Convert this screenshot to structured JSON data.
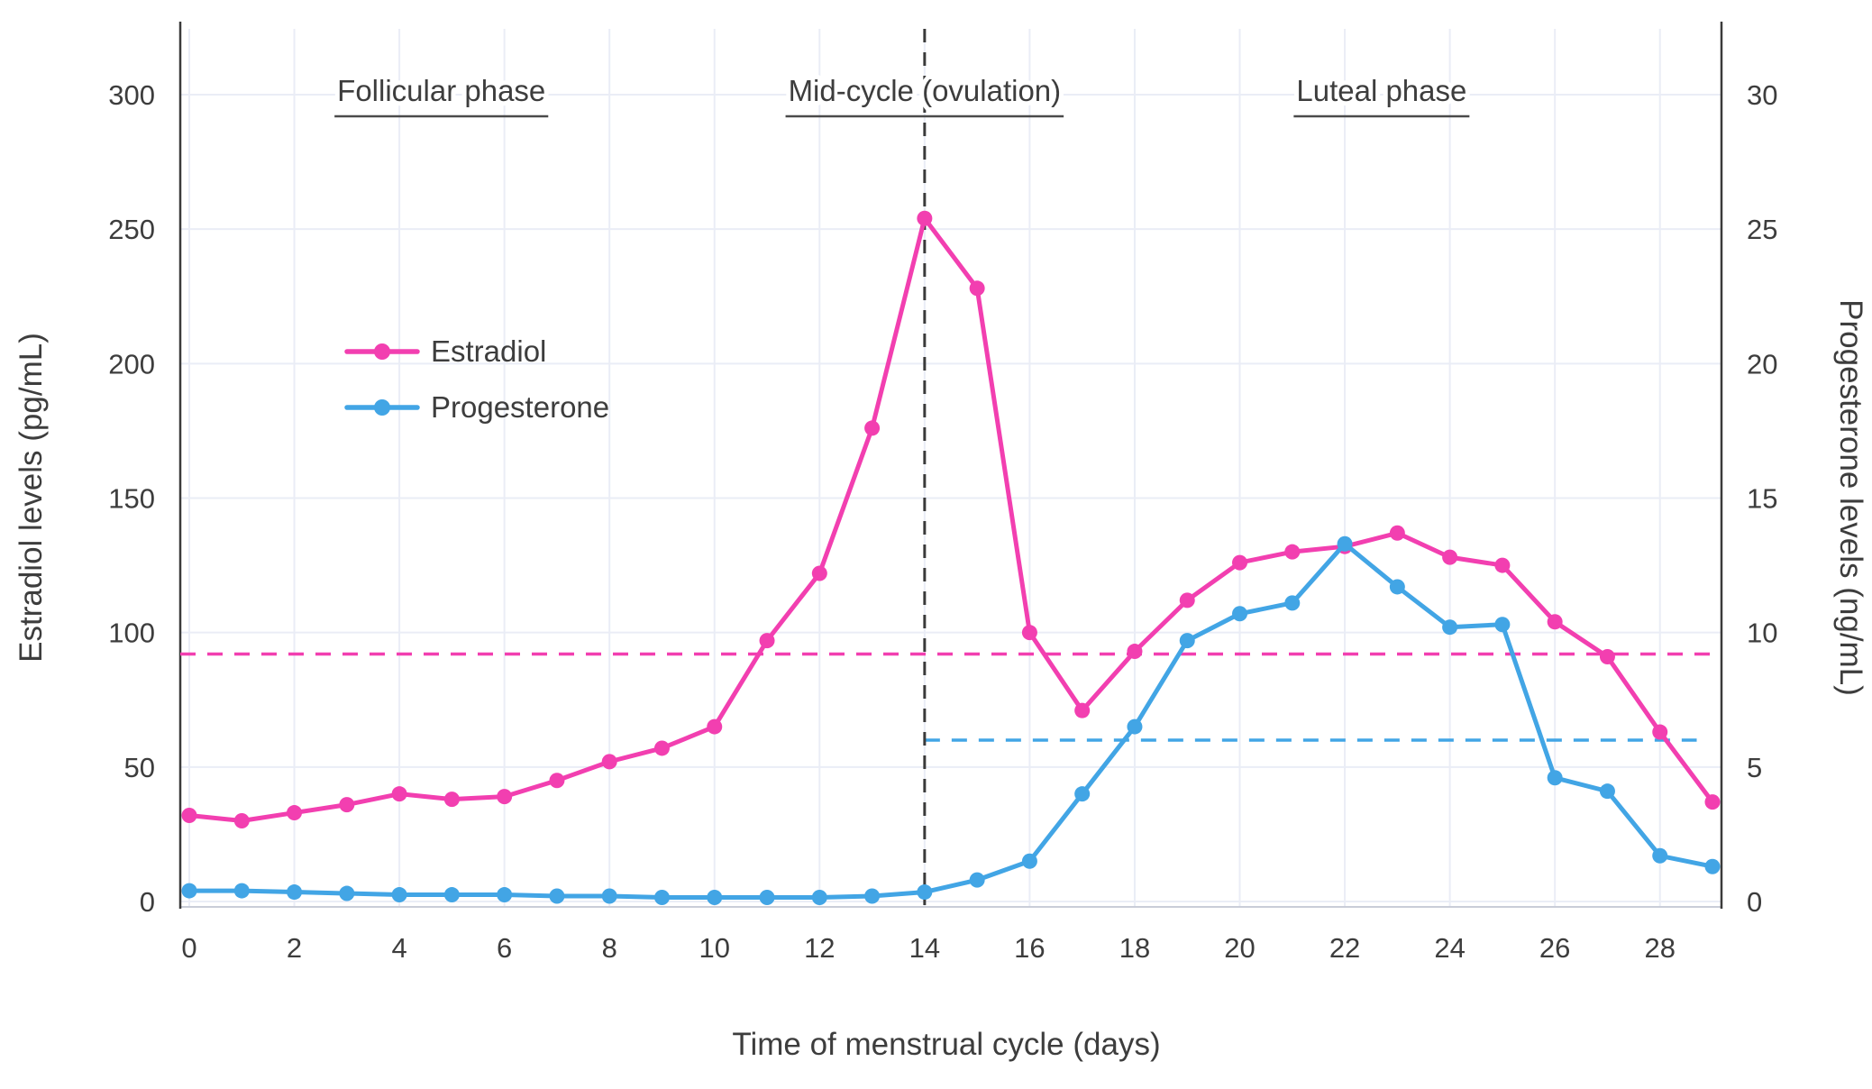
{
  "chart_data": {
    "type": "line",
    "title": "",
    "xlabel": "Time of menstrual cycle (days)",
    "ylabel_left": "Estradiol levels (pg/mL)",
    "ylabel_right": "Progesterone levels (ng/mL)",
    "x_range": [
      0,
      29
    ],
    "y_left_range": [
      0,
      300
    ],
    "y_right_range": [
      0,
      30
    ],
    "x_ticks": [
      0,
      2,
      4,
      6,
      8,
      10,
      12,
      14,
      16,
      18,
      20,
      22,
      24,
      26,
      28
    ],
    "y_left_ticks": [
      0,
      50,
      100,
      150,
      200,
      250,
      300
    ],
    "y_right_ticks": [
      0,
      5,
      10,
      15,
      20,
      25,
      30
    ],
    "grid": true,
    "legend_position": "upper-left-inside",
    "x": [
      0,
      1,
      2,
      3,
      4,
      5,
      6,
      7,
      8,
      9,
      10,
      11,
      12,
      13,
      14,
      15,
      16,
      17,
      18,
      19,
      20,
      21,
      22,
      23,
      24,
      25,
      26,
      27,
      28,
      29
    ],
    "series": [
      {
        "name": "Estradiol",
        "axis": "left",
        "color": "#f23fb0",
        "values": [
          32,
          30,
          33,
          36,
          40,
          38,
          39,
          45,
          52,
          57,
          65,
          97,
          122,
          176,
          254,
          228,
          100,
          71,
          93,
          112,
          126,
          130,
          132,
          137,
          128,
          125,
          104,
          91,
          63,
          37
        ]
      },
      {
        "name": "Progesterone",
        "axis": "right",
        "color": "#42a5e5",
        "values": [
          0.4,
          0.4,
          0.35,
          0.3,
          0.25,
          0.25,
          0.25,
          0.2,
          0.2,
          0.15,
          0.15,
          0.15,
          0.15,
          0.2,
          0.35,
          0.8,
          1.5,
          4.0,
          6.5,
          9.7,
          10.7,
          11.1,
          13.3,
          11.7,
          10.2,
          10.3,
          4.6,
          4.1,
          1.7,
          1.3
        ]
      }
    ],
    "reference_lines": [
      {
        "type": "horizontal",
        "axis": "left",
        "value": 92,
        "color": "#f23fb0",
        "full_width": true
      },
      {
        "type": "horizontal",
        "axis": "right",
        "value": 6,
        "color": "#42a5e5",
        "from_day": 14,
        "to_day": 28.7
      },
      {
        "type": "vertical",
        "day": 14,
        "color": "#3a3a3a"
      }
    ],
    "annotations": [
      {
        "label": "Follicular phase",
        "day": 4.8
      },
      {
        "label": "Mid-cycle (ovulation)",
        "day": 14
      },
      {
        "label": "Luteal phase",
        "day": 22.7
      }
    ]
  },
  "colors": {
    "estradiol": "#f23fb0",
    "progesterone": "#42a5e5",
    "grid": "#eaedf6",
    "axis_line": "#3b3b3b",
    "bottom_line": "#c9cdd8",
    "text": "#3d3d3d",
    "annotation_underline": "#4a4a4a",
    "background": "#ffffff"
  }
}
